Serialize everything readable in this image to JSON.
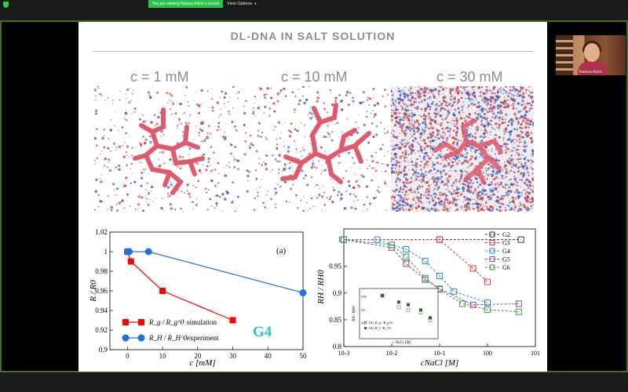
{
  "zoom": {
    "banner": "You are viewing Natasa Adzic's screen",
    "view_options": "View Options"
  },
  "participant": {
    "name": "Natasa Adzic"
  },
  "slide": {
    "title": "DL-DNA IN SALT SOLUTION",
    "concentrations": [
      "c = 1 mM",
      "c = 10 mM",
      "c = 30 mM"
    ],
    "g4_label": "G4"
  },
  "chart_data": [
    {
      "type": "line",
      "panel_label": "(a)",
      "xlabel": "c [mM]",
      "ylabel": "R / R0",
      "xlim": [
        -5,
        50
      ],
      "ylim": [
        0.9,
        1.02
      ],
      "xticks": [
        0,
        10,
        20,
        30,
        40,
        50
      ],
      "yticks": [
        0.9,
        0.92,
        0.94,
        0.96,
        0.98,
        1,
        1.02
      ],
      "ytick_labels": [
        "0.9",
        "0.92",
        "0.94",
        "0.96",
        "0.98",
        "1",
        "1.02"
      ],
      "series": [
        {
          "name": "Rg / Rg0  simulation",
          "legend_math": "R_g / R_g^0",
          "legend_text": "simulation",
          "marker": "square",
          "color": "#ff0000",
          "x": [
            0,
            1,
            10,
            30
          ],
          "y": [
            1.0,
            0.99,
            0.96,
            0.93
          ]
        },
        {
          "name": "RH / RH0  experiment",
          "legend_math": "R_H / R_H^0",
          "legend_text": "experiment",
          "marker": "circle",
          "color": "#1f6fe0",
          "x": [
            0,
            0.5,
            6,
            50
          ],
          "y": [
            1.0,
            1.0,
            1.0,
            0.958
          ]
        }
      ]
    },
    {
      "type": "line",
      "xscale": "log",
      "xlabel": "cNaCl [M]",
      "ylabel": "RH / RH0",
      "xlim": [
        0.001,
        10
      ],
      "ylim": [
        0.8,
        1.02
      ],
      "xticks": [
        0.001,
        0.01,
        0.1,
        1,
        10
      ],
      "xtick_labels": [
        "10-3",
        "10-2",
        "10-1",
        "100",
        "101"
      ],
      "yticks": [
        0.8,
        0.85,
        0.9,
        0.95,
        1
      ],
      "ytick_labels": [
        "0.8",
        "0.85",
        "0.9",
        "0.95",
        "1"
      ],
      "legend_position": "top-right",
      "series": [
        {
          "name": "G2",
          "color": "#333333",
          "x": [
            0.001,
            0.1,
            5
          ],
          "y": [
            1.0,
            1.0,
            1.0
          ]
        },
        {
          "name": "G3",
          "color": "#e33b3b",
          "x": [
            0.001,
            0.1,
            0.5,
            1.0
          ],
          "y": [
            1.0,
            1.0,
            0.946,
            0.921
          ]
        },
        {
          "name": "G4",
          "color": "#3b7fe3",
          "x": [
            0.001,
            0.005,
            0.01,
            0.02,
            0.05,
            0.1,
            0.2,
            1.0
          ],
          "y": [
            1.0,
            1.0,
            0.99,
            0.982,
            0.96,
            0.932,
            0.903,
            0.882
          ]
        },
        {
          "name": "G5",
          "color": "#8e44ad",
          "x": [
            0.001,
            0.01,
            0.02,
            0.05,
            0.1,
            0.5,
            4.5
          ],
          "y": [
            1.0,
            0.985,
            0.955,
            0.925,
            0.908,
            0.878,
            0.88
          ]
        },
        {
          "name": "G6",
          "color": "#3c9a3c",
          "x": [
            0.001,
            0.01,
            0.02,
            0.05,
            0.1,
            0.3,
            1.0,
            4.5
          ],
          "y": [
            1.0,
            0.99,
            0.968,
            0.928,
            0.907,
            0.88,
            0.869,
            0.865
          ]
        }
      ]
    },
    {
      "type": "scatter",
      "inset": true,
      "xscale": "log",
      "xlabel": "c NaCl [M]",
      "ylabel": "RH / RH0",
      "ylim": [
        0.85,
        0.97
      ],
      "yticks": [
        0.85,
        0.9,
        0.95
      ],
      "ytick_labels": [
        "0.85",
        "0.9",
        "0.95"
      ],
      "series": [
        {
          "name": "G6, Rg / Rg0",
          "legend_math": "G6, R_g / R_g^0",
          "fill": "open",
          "color": "#3c9a3c",
          "x": [
            0.003,
            0.01,
            0.02,
            0.05,
            0.1
          ],
          "y": [
            0.955,
            0.91,
            0.9,
            0.89,
            0.86
          ]
        },
        {
          "name": "G6, Rl / Rl0",
          "legend_math": "G6, R_l / R_l^0",
          "fill": "filled",
          "color": "#1f6e1f",
          "x": [
            0.003,
            0.01,
            0.02,
            0.05,
            0.1
          ],
          "y": [
            0.955,
            0.93,
            0.92,
            0.9,
            0.87
          ]
        }
      ]
    }
  ]
}
